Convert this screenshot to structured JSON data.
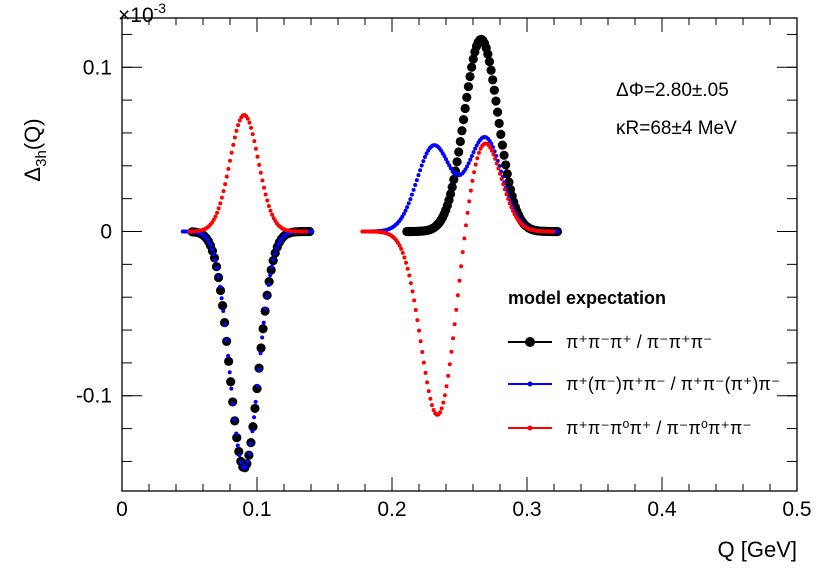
{
  "chart_data": {
    "type": "scatter",
    "xlabel": "Q [GeV]",
    "ylabel_main": "Δ",
    "ylabel_sub": "3h",
    "ylabel_tail": "(Q)",
    "y_exponent_base": "×10",
    "y_exponent_power": "-3",
    "xlim": [
      0,
      0.5
    ],
    "ylim": [
      -0.158,
      0.13
    ],
    "xticks": [
      {
        "v": 0,
        "label": "0"
      },
      {
        "v": 0.1,
        "label": "0.1"
      },
      {
        "v": 0.2,
        "label": "0.2"
      },
      {
        "v": 0.3,
        "label": "0.3"
      },
      {
        "v": 0.4,
        "label": "0.4"
      },
      {
        "v": 0.5,
        "label": "0.5"
      }
    ],
    "yticks": [
      {
        "v": -0.1,
        "label": "-0.1"
      },
      {
        "v": 0,
        "label": "0"
      },
      {
        "v": 0.1,
        "label": "0.1"
      }
    ],
    "annotations": [
      "ΔΦ=2.80±.05",
      "κR=68±4 MeV"
    ],
    "legend_title": "model expectation",
    "legend_placement": "lower-right",
    "grid": false,
    "series": [
      {
        "name": "π⁺π⁻π⁺ / π⁻π⁺π⁻",
        "color": "#000000",
        "marker_radius": "large",
        "segments": [
          {
            "xmin": 0.052,
            "xmax": 0.139,
            "step": 0.0015,
            "peaks": [
              {
                "x0": 0.0905,
                "amp": -0.144,
                "sigma": 0.0105
              }
            ]
          },
          {
            "xmin": 0.211,
            "xmax": 0.323,
            "step": 0.0012,
            "peaks": [
              {
                "x0": 0.266,
                "amp": 0.117,
                "sigma": 0.0125
              }
            ]
          }
        ]
      },
      {
        "name": "π⁺(π⁻)π⁺π⁻ / π⁺π⁻(π⁺)π⁻",
        "color": "#0000ff",
        "marker_radius": "small",
        "segments": [
          {
            "xmin": 0.045,
            "xmax": 0.141,
            "step": 0.0012,
            "peaks": [
              {
                "x0": 0.0905,
                "amp": -0.144,
                "sigma": 0.0105
              }
            ]
          },
          {
            "xmin": 0.18,
            "xmax": 0.323,
            "step": 0.0012,
            "peaks": [
              {
                "x0": 0.231,
                "amp": 0.052,
                "sigma": 0.0125
              },
              {
                "x0": 0.269,
                "amp": 0.057,
                "sigma": 0.0125
              }
            ]
          }
        ]
      },
      {
        "name": "π⁺π⁻π⁰π⁺ / π⁻π⁰π⁺π⁻",
        "color": "#ff0000",
        "marker_radius": "small",
        "segments": [
          {
            "xmin": 0.05,
            "xmax": 0.137,
            "step": 0.0012,
            "peaks": [
              {
                "x0": 0.0905,
                "amp": 0.071,
                "sigma": 0.0105
              }
            ]
          },
          {
            "xmin": 0.178,
            "xmax": 0.32,
            "step": 0.0012,
            "peaks": [
              {
                "x0": 0.234,
                "amp": -0.113,
                "sigma": 0.0125
              },
              {
                "x0": 0.268,
                "amp": 0.056,
                "sigma": 0.0125
              }
            ]
          }
        ]
      }
    ]
  }
}
